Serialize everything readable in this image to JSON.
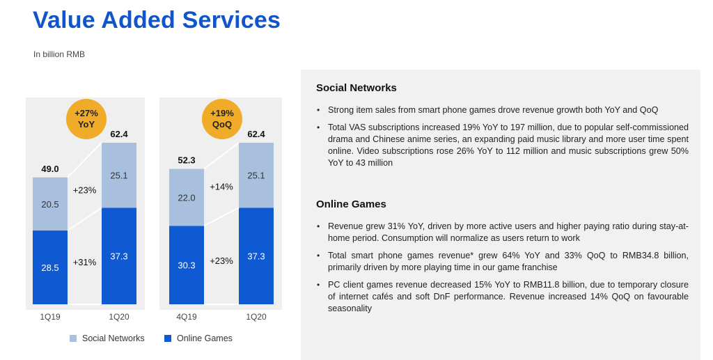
{
  "header": {
    "title": "Value Added Services",
    "subtitle": "In billion RMB"
  },
  "colors": {
    "social": "#a8c0de",
    "games": "#0f5ad2",
    "badge": "#f0ab28",
    "accent": "#1155cc"
  },
  "chart_data": [
    {
      "type": "bar",
      "stacked": true,
      "categories": [
        "1Q19",
        "1Q20"
      ],
      "series": [
        {
          "name": "Online Games",
          "values": [
            28.5,
            37.3
          ]
        },
        {
          "name": "Social Networks",
          "values": [
            20.5,
            25.1
          ]
        }
      ],
      "totals": [
        "49.0",
        "62.4"
      ],
      "series_labels": {
        "Online Games": [
          "28.5",
          "37.3"
        ],
        "Social Networks": [
          "20.5",
          "25.1"
        ]
      },
      "growth_labels": {
        "Social Networks": "+23%",
        "Online Games": "+31%"
      },
      "badge": [
        "+27%",
        "YoY"
      ],
      "ylim": [
        0,
        62.4
      ]
    },
    {
      "type": "bar",
      "stacked": true,
      "categories": [
        "4Q19",
        "1Q20"
      ],
      "series": [
        {
          "name": "Online Games",
          "values": [
            30.3,
            37.3
          ]
        },
        {
          "name": "Social Networks",
          "values": [
            22.0,
            25.1
          ]
        }
      ],
      "totals": [
        "52.3",
        "62.4"
      ],
      "series_labels": {
        "Online Games": [
          "30.3",
          "37.3"
        ],
        "Social Networks": [
          "22.0",
          "25.1"
        ]
      },
      "growth_labels": {
        "Social Networks": "+14%",
        "Online Games": "+23%"
      },
      "badge": [
        "+19%",
        "QoQ"
      ],
      "ylim": [
        0,
        62.4
      ]
    }
  ],
  "legend": {
    "social": "Social Networks",
    "games": "Online Games"
  },
  "text": {
    "social_heading": "Social Networks",
    "social_bullets": [
      "Strong item sales from smart phone games drove revenue growth both YoY and QoQ",
      "Total VAS subscriptions increased 19% YoY to 197 million, due to popular self-commissioned drama and Chinese anime series, an expanding paid music library and more user time spent online. Video subscriptions rose 26% YoY to 112 million and music subscriptions grew 50% YoY to 43 million"
    ],
    "games_heading": "Online Games",
    "games_bullets": [
      "Revenue grew 31% YoY, driven by more active users and higher paying ratio during stay-at-home period. Consumption will normalize as users return to work",
      "Total smart phone games revenue* grew 64% YoY and 33% QoQ to RMB34.8 billion, primarily driven by more playing time in our game franchise",
      "PC client games revenue decreased 15% YoY to RMB11.8 billion, due to temporary closure of internet cafés and soft DnF performance. Revenue increased 14% QoQ on favourable seasonality"
    ]
  }
}
